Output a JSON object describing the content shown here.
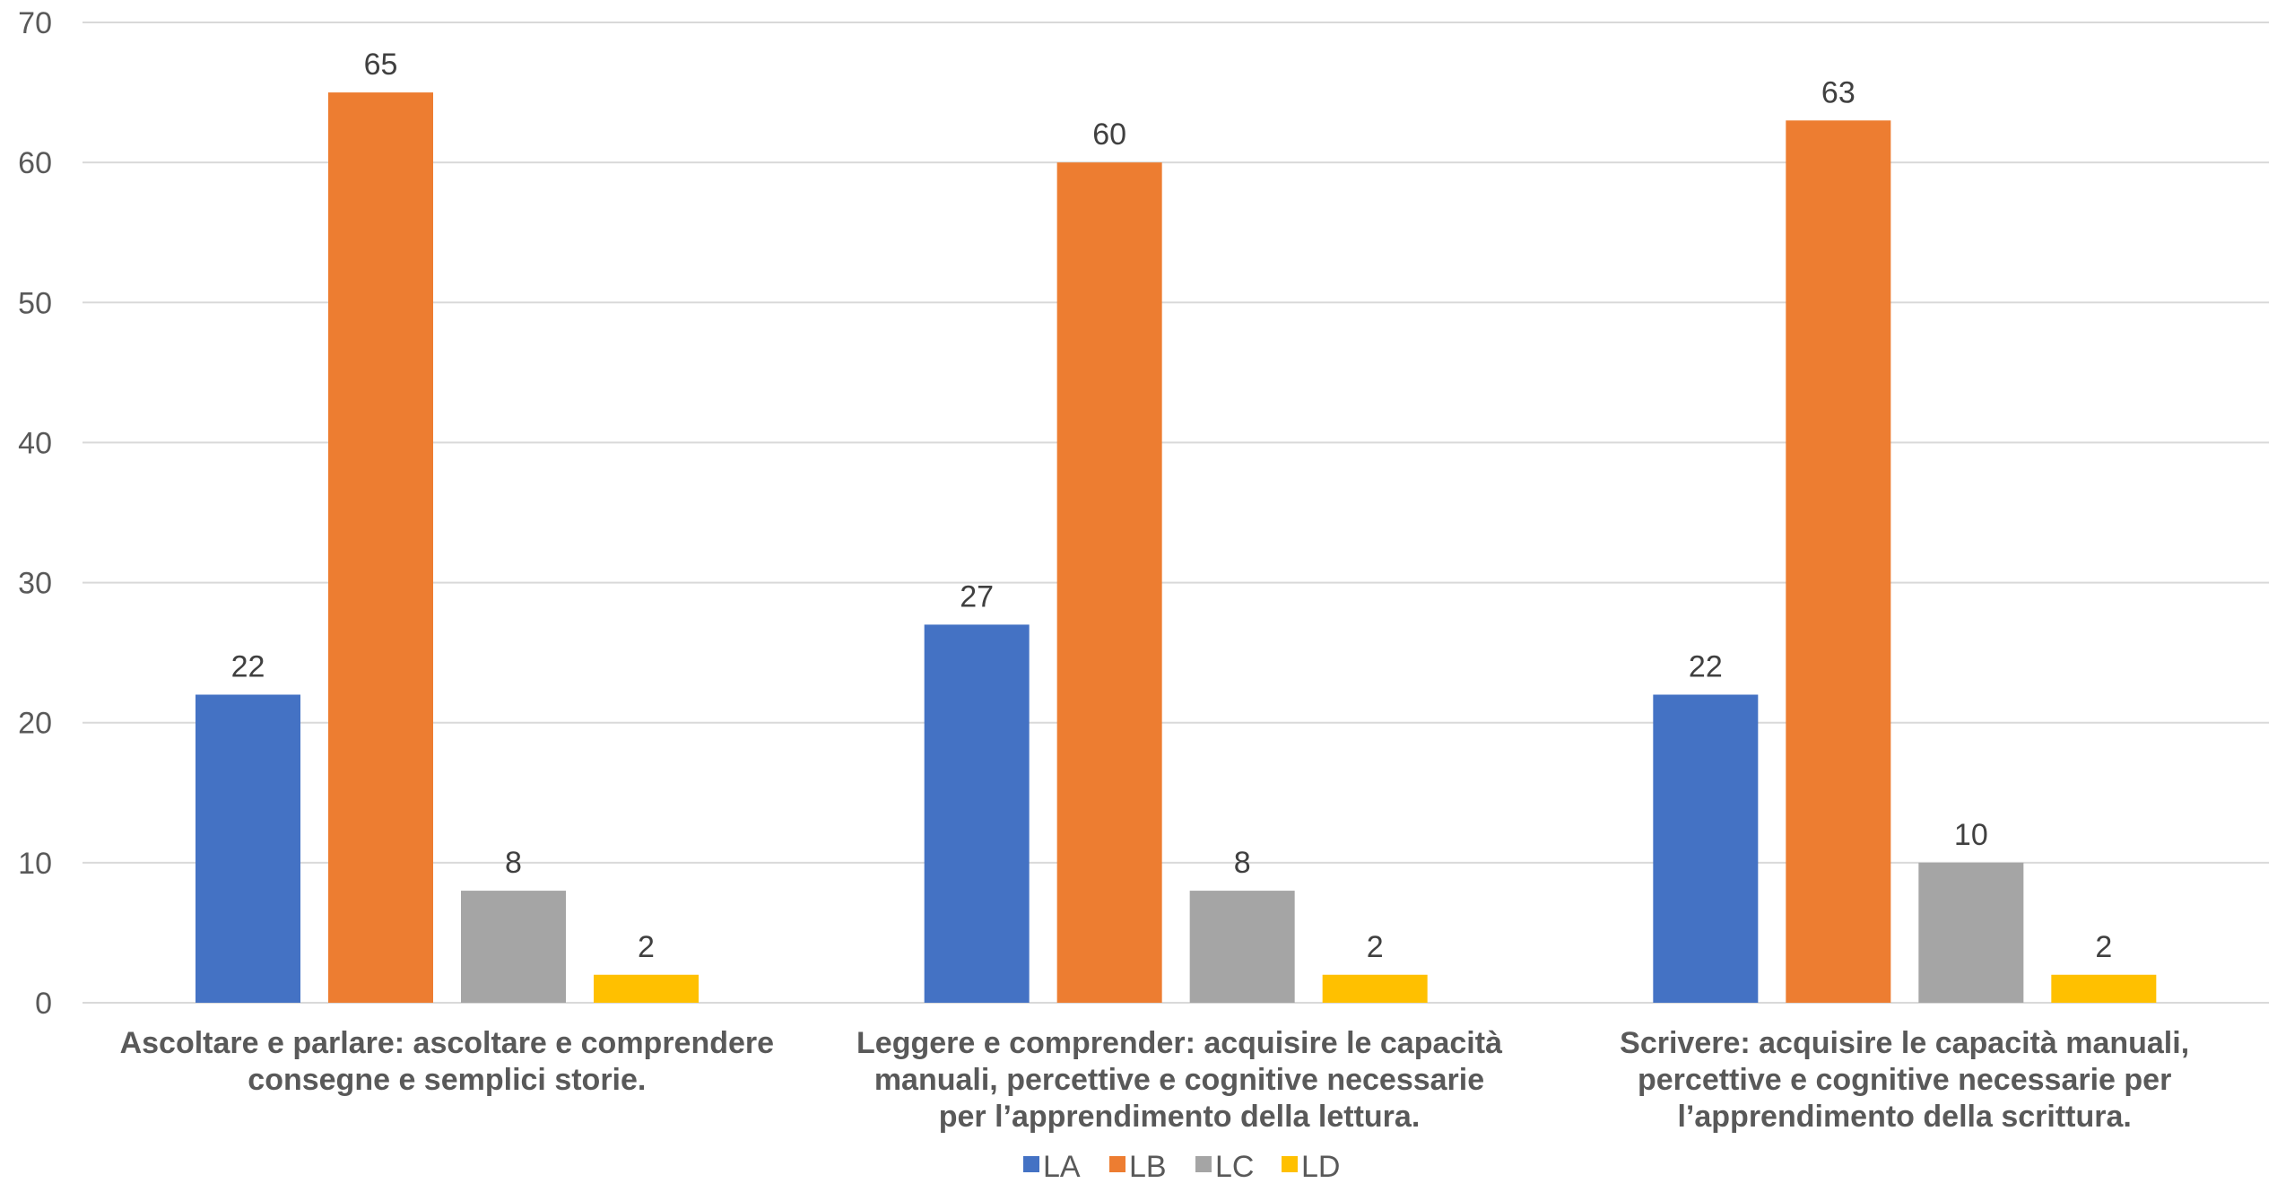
{
  "chart_data": {
    "type": "bar",
    "title": "",
    "xlabel": "",
    "ylabel": "",
    "ylim": [
      0,
      70
    ],
    "yticks": [
      0,
      10,
      20,
      30,
      40,
      50,
      60,
      70
    ],
    "grid": true,
    "legend_position": "bottom",
    "categories": [
      [
        "Ascoltare e parlare: ascoltare e comprendere",
        "consegne e semplici storie."
      ],
      [
        "Leggere e comprender: acquisire le capacità",
        "manuali, percettive e cognitive necessarie",
        "per l’apprendimento della lettura."
      ],
      [
        "Scrivere: acquisire le capacità manuali,",
        "percettive e cognitive necessarie per",
        "l’apprendimento della scrittura."
      ]
    ],
    "series": [
      {
        "name": "LA",
        "color": "#4472C4",
        "values": [
          22,
          27,
          22
        ]
      },
      {
        "name": "LB",
        "color": "#ED7D31",
        "values": [
          65,
          60,
          63
        ]
      },
      {
        "name": "LC",
        "color": "#A5A5A5",
        "values": [
          8,
          8,
          10
        ]
      },
      {
        "name": "LD",
        "color": "#FFC000",
        "values": [
          2,
          2,
          2
        ]
      }
    ],
    "show_data_labels": true,
    "gridline_color": "#D9D9D9"
  }
}
